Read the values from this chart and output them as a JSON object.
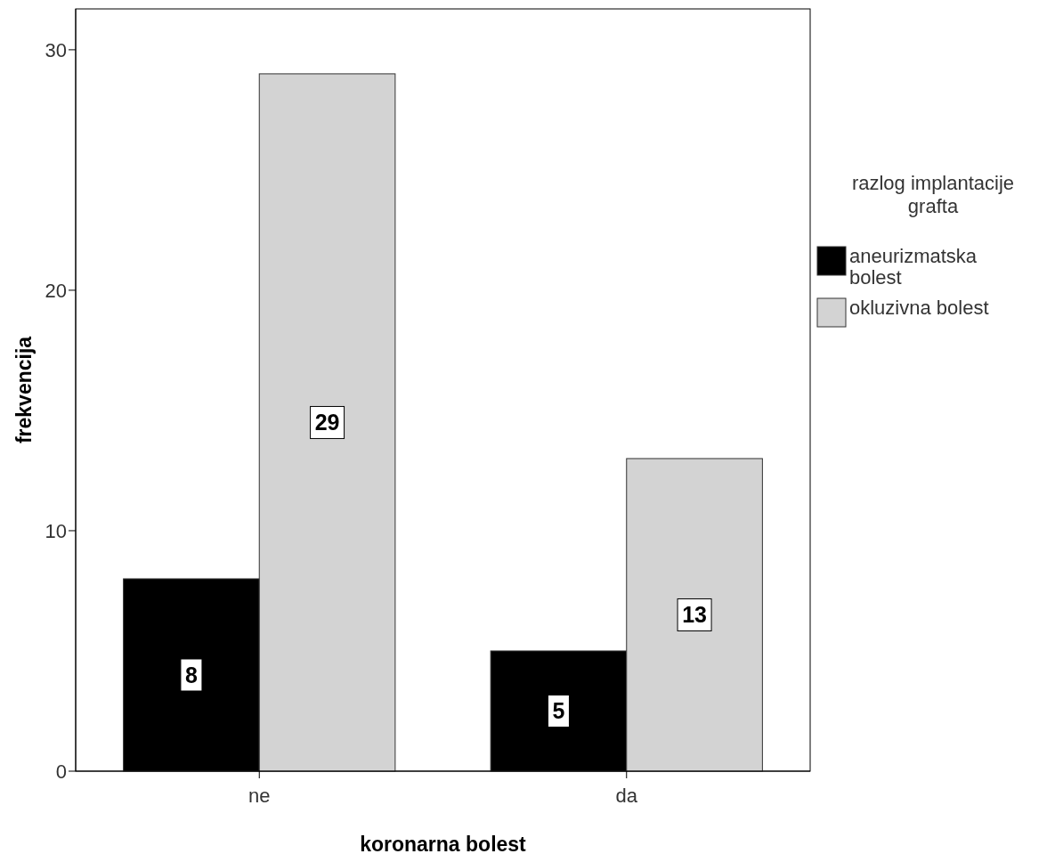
{
  "chart_data": {
    "type": "bar",
    "xlabel": "koronarna bolest",
    "ylabel": "frekvencija",
    "legend_title": "razlog implantacije grafta",
    "categories": [
      "ne",
      "da"
    ],
    "series": [
      {
        "name": "aneurizmatska bolest",
        "color": "#000000",
        "values": [
          8,
          5
        ]
      },
      {
        "name": "okluzivna bolest",
        "color": "#d3d3d3",
        "values": [
          29,
          13
        ]
      }
    ],
    "ylim": [
      0,
      31.7
    ],
    "yticks": [
      0,
      10,
      20,
      30
    ],
    "grid": false,
    "legend": "right",
    "data_labels": true
  }
}
